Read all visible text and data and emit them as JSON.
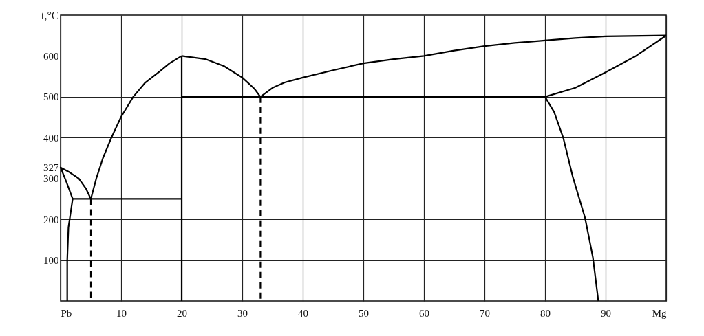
{
  "chart_data": {
    "type": "line",
    "ylabel": "t,°C",
    "xlim": [
      0,
      100
    ],
    "ylim": [
      0,
      700
    ],
    "xticks": [
      {
        "value": 0,
        "label": "Pb"
      },
      10,
      20,
      30,
      40,
      50,
      60,
      70,
      80,
      90,
      {
        "value": 100,
        "label": "Mg"
      }
    ],
    "yticks": [
      100,
      200,
      300,
      327,
      400,
      500,
      600
    ],
    "grid": true,
    "marker": "none",
    "series": [
      {
        "color": "#000000",
        "x": [
          5,
          4.2,
          3,
          1.5,
          0,
          1,
          2,
          1.3,
          1.1,
          1.1
        ],
        "values": [
          250,
          275,
          300,
          315,
          327,
          290,
          250,
          180,
          100,
          0
        ]
      },
      {
        "color": "#000000",
        "x": [
          2,
          20
        ],
        "values": [
          250,
          250
        ]
      },
      {
        "color": "#000000",
        "x": [
          5,
          5.9,
          7,
          8.4,
          10,
          12,
          14,
          16.2,
          18,
          20
        ],
        "values": [
          250,
          300,
          350,
          400,
          451,
          500,
          535,
          560,
          582,
          600
        ]
      },
      {
        "color": "#000000",
        "x": [
          20,
          20
        ],
        "values": [
          0,
          600
        ]
      },
      {
        "color": "#000000",
        "x": [
          20,
          80
        ],
        "values": [
          500,
          500
        ]
      },
      {
        "color": "#000000",
        "x": [
          20,
          24,
          27,
          30,
          32,
          33,
          35,
          37,
          40,
          45,
          50,
          55,
          60,
          65,
          70,
          75,
          80,
          85,
          90,
          100
        ],
        "values": [
          600,
          592,
          575,
          547,
          520,
          500,
          522,
          535,
          547,
          565,
          582,
          592,
          600,
          613,
          624,
          632,
          638,
          644,
          648,
          650
        ]
      },
      {
        "color": "#000000",
        "x": [
          100,
          95,
          90,
          85,
          80,
          81.5,
          83,
          84.6,
          86.6,
          87.9,
          88.8
        ],
        "values": [
          650,
          600,
          560,
          522,
          500,
          463,
          400,
          303,
          204,
          107,
          0
        ]
      },
      {
        "color": "#000000",
        "line_style": "dashed",
        "x": [
          5,
          5
        ],
        "values": [
          250,
          0
        ]
      },
      {
        "color": "#000000",
        "line_style": "dashed",
        "x": [
          33,
          33
        ],
        "values": [
          500,
          0
        ]
      }
    ]
  }
}
